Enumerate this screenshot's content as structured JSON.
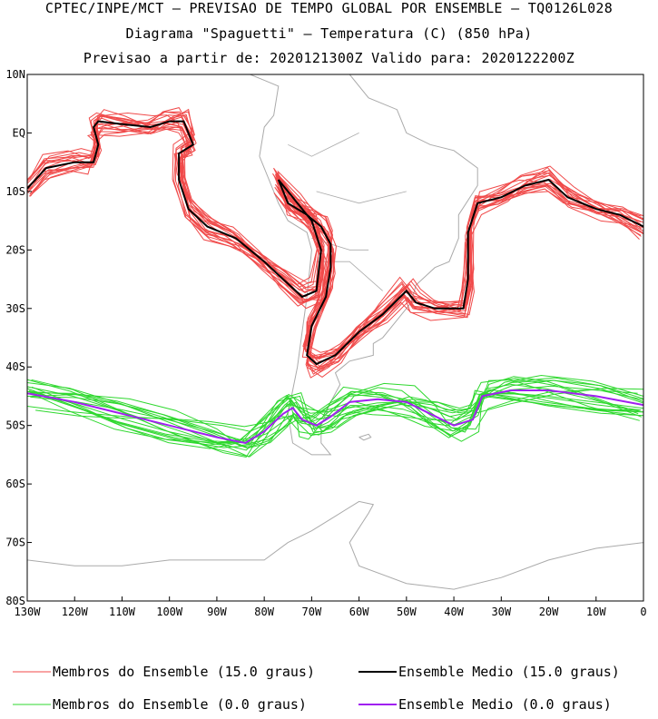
{
  "title_line1": "CPTEC/INPE/MCT – PREVISAO DE TEMPO GLOBAL POR ENSEMBLE – TQ0126L028",
  "title_line2": "Diagrama \"Spaguetti\" – Temperatura (C) (850 hPa)",
  "title_line3": "Previsao a partir de: 2020121300Z  Valido para: 2020122200Z",
  "colors": {
    "members_15": "#f04a4a",
    "mean_15": "#000000",
    "members_0": "#2fd82f",
    "mean_0": "#a020f0",
    "coast": "#aaaaaa"
  },
  "legend": [
    {
      "label": "Membros do Ensemble (15.0 graus)",
      "color": "#f04a4a",
      "weight": "thin"
    },
    {
      "label": "Ensemble Medio (15.0 graus)",
      "color": "#000000",
      "weight": "thick"
    },
    {
      "label": "Membros do Ensemble (0.0 graus)",
      "color": "#2fd82f",
      "weight": "thin"
    },
    {
      "label": "Ensemble Medio (0.0 graus)",
      "color": "#a020f0",
      "weight": "thick"
    }
  ],
  "chart_data": {
    "type": "line",
    "projection": "lat-lon map",
    "xlim": [
      -130,
      0
    ],
    "ylim": [
      -80,
      10
    ],
    "x_ticks": [
      {
        "v": -130,
        "label": "130W"
      },
      {
        "v": -120,
        "label": "120W"
      },
      {
        "v": -110,
        "label": "110W"
      },
      {
        "v": -100,
        "label": "100W"
      },
      {
        "v": -90,
        "label": "90W"
      },
      {
        "v": -80,
        "label": "80W"
      },
      {
        "v": -70,
        "label": "70W"
      },
      {
        "v": -60,
        "label": "60W"
      },
      {
        "v": -50,
        "label": "50W"
      },
      {
        "v": -40,
        "label": "40W"
      },
      {
        "v": -30,
        "label": "30W"
      },
      {
        "v": -20,
        "label": "20W"
      },
      {
        "v": -10,
        "label": "10W"
      },
      {
        "v": 0,
        "label": "0"
      }
    ],
    "y_ticks": [
      {
        "v": 10,
        "label": "10N"
      },
      {
        "v": 0,
        "label": "EQ"
      },
      {
        "v": -10,
        "label": "10S"
      },
      {
        "v": -20,
        "label": "20S"
      },
      {
        "v": -30,
        "label": "30S"
      },
      {
        "v": -40,
        "label": "40S"
      },
      {
        "v": -50,
        "label": "50S"
      },
      {
        "v": -60,
        "label": "60S"
      },
      {
        "v": -70,
        "label": "70S"
      },
      {
        "v": -80,
        "label": "80S"
      }
    ],
    "series": [
      {
        "name": "Ensemble Medio (15.0 graus)",
        "points": [
          [
            -130,
            -9.5
          ],
          [
            -126,
            -6
          ],
          [
            -120,
            -5
          ],
          [
            -116,
            -5
          ],
          [
            -115,
            -2
          ],
          [
            -116,
            1
          ],
          [
            -115,
            2
          ],
          [
            -110,
            1.5
          ],
          [
            -104,
            1
          ],
          [
            -100,
            2
          ],
          [
            -97,
            2
          ],
          [
            -95,
            -2
          ],
          [
            -98,
            -3.5
          ],
          [
            -98,
            -8
          ],
          [
            -96,
            -13
          ],
          [
            -92,
            -16
          ],
          [
            -86,
            -18
          ],
          [
            -80,
            -22
          ],
          [
            -76,
            -25
          ],
          [
            -72,
            -28
          ],
          [
            -69,
            -27
          ],
          [
            -68,
            -20
          ],
          [
            -70,
            -15
          ],
          [
            -73,
            -12
          ],
          [
            -77,
            -8
          ],
          [
            -75,
            -12
          ],
          [
            -71,
            -14
          ],
          [
            -68,
            -16
          ],
          [
            -66,
            -19
          ],
          [
            -66,
            -23
          ],
          [
            -67,
            -28
          ],
          [
            -70,
            -33
          ],
          [
            -71,
            -38
          ],
          [
            -69,
            -39.5
          ],
          [
            -65,
            -38
          ],
          [
            -60,
            -34
          ],
          [
            -55,
            -31
          ],
          [
            -50,
            -27
          ],
          [
            -48,
            -29
          ],
          [
            -44,
            -30
          ],
          [
            -38,
            -30
          ],
          [
            -37,
            -25
          ],
          [
            -37,
            -17
          ],
          [
            -35,
            -12
          ],
          [
            -30,
            -11
          ],
          [
            -25,
            -9
          ],
          [
            -20,
            -8
          ],
          [
            -16,
            -11
          ],
          [
            -10,
            -13
          ],
          [
            -5,
            -14
          ],
          [
            0,
            -16
          ]
        ]
      },
      {
        "name": "Ensemble Medio (0.0 graus)",
        "points": [
          [
            -130,
            -44.5
          ],
          [
            -120,
            -46
          ],
          [
            -110,
            -48
          ],
          [
            -100,
            -50
          ],
          [
            -90,
            -52
          ],
          [
            -84,
            -53
          ],
          [
            -80,
            -51
          ],
          [
            -76,
            -48
          ],
          [
            -74,
            -47
          ],
          [
            -72,
            -49
          ],
          [
            -69,
            -50
          ],
          [
            -66,
            -48.5
          ],
          [
            -62,
            -46
          ],
          [
            -56,
            -45.5
          ],
          [
            -50,
            -46
          ],
          [
            -45,
            -48
          ],
          [
            -40,
            -50
          ],
          [
            -36,
            -49
          ],
          [
            -34,
            -45
          ],
          [
            -28,
            -44
          ],
          [
            -20,
            -44
          ],
          [
            -10,
            -45
          ],
          [
            0,
            -46.5
          ]
        ]
      }
    ]
  }
}
